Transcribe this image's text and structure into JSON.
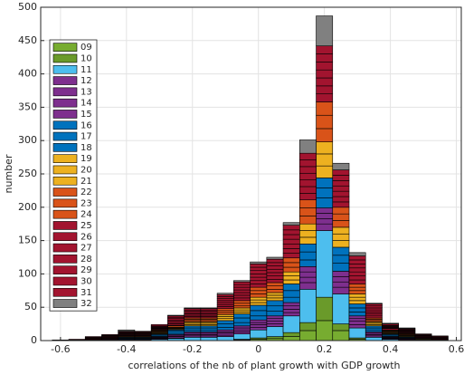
{
  "chart_data": {
    "type": "stacked-histogram",
    "xlabel": "correlations of the nb of plant growth with GDP growth",
    "ylabel": "number",
    "bins": [
      -0.625,
      -0.575,
      -0.525,
      -0.475,
      -0.425,
      -0.375,
      -0.325,
      -0.275,
      -0.225,
      -0.175,
      -0.125,
      -0.075,
      -0.025,
      0.025,
      0.075,
      0.125,
      0.175,
      0.225,
      0.275,
      0.325,
      0.375,
      0.425,
      0.475,
      0.525,
      0.575
    ],
    "xlim": [
      -0.66,
      0.615
    ],
    "ylim": [
      0,
      500
    ],
    "xticks": [
      -0.6,
      -0.4,
      -0.2,
      0,
      0.2,
      0.4,
      0.6
    ],
    "yticks": [
      0,
      50,
      100,
      150,
      200,
      250,
      300,
      350,
      400,
      450,
      500
    ],
    "grid": true,
    "legend": "upper left",
    "series": [
      {
        "name": "09",
        "color": "#77ac30",
        "values": [
          0,
          0,
          0,
          0,
          0,
          0,
          0,
          0,
          0,
          0,
          0,
          1,
          2,
          3,
          6,
          15,
          30,
          15,
          2,
          0,
          0,
          0,
          0,
          0
        ]
      },
      {
        "name": "10",
        "color": "#6a9a2a",
        "values": [
          0,
          0,
          0,
          0,
          0,
          0,
          0,
          0,
          0,
          0,
          0,
          1,
          2,
          3,
          6,
          12,
          35,
          10,
          2,
          0,
          0,
          0,
          0,
          0
        ]
      },
      {
        "name": "11",
        "color": "#4dbeee",
        "values": [
          0,
          0,
          0,
          0,
          0,
          1,
          2,
          3,
          5,
          5,
          6,
          8,
          12,
          15,
          25,
          50,
          100,
          45,
          15,
          5,
          2,
          0,
          0,
          0
        ]
      },
      {
        "name": "12",
        "color": "#7e2f8e",
        "values": [
          0,
          0,
          0,
          0,
          1,
          0,
          1,
          1,
          2,
          2,
          2,
          3,
          4,
          4,
          5,
          10,
          10,
          10,
          5,
          2,
          1,
          1,
          0,
          0
        ]
      },
      {
        "name": "13",
        "color": "#7e2f8e",
        "values": [
          0,
          0,
          0,
          0,
          0,
          1,
          1,
          2,
          2,
          2,
          3,
          3,
          4,
          4,
          5,
          8,
          8,
          8,
          5,
          2,
          1,
          1,
          0,
          0
        ]
      },
      {
        "name": "14",
        "color": "#7e2f8e",
        "values": [
          0,
          0,
          0,
          0,
          0,
          0,
          1,
          1,
          2,
          2,
          2,
          3,
          3,
          4,
          5,
          8,
          8,
          8,
          4,
          2,
          1,
          0,
          1,
          0
        ]
      },
      {
        "name": "15",
        "color": "#7e2f8e",
        "values": [
          0,
          0,
          0,
          0,
          1,
          0,
          1,
          2,
          2,
          2,
          3,
          3,
          4,
          4,
          5,
          8,
          8,
          8,
          4,
          2,
          1,
          1,
          0,
          0
        ]
      },
      {
        "name": "16",
        "color": "#0072bd",
        "values": [
          0,
          0,
          0,
          1,
          1,
          1,
          1,
          2,
          3,
          3,
          4,
          5,
          6,
          7,
          8,
          10,
          15,
          12,
          6,
          3,
          1,
          1,
          0,
          0
        ]
      },
      {
        "name": "17",
        "color": "#0072bd",
        "values": [
          0,
          0,
          0,
          0,
          1,
          1,
          2,
          3,
          3,
          3,
          5,
          7,
          8,
          8,
          10,
          12,
          15,
          12,
          6,
          3,
          2,
          1,
          1,
          0
        ]
      },
      {
        "name": "18",
        "color": "#0072bd",
        "values": [
          0,
          0,
          0,
          1,
          1,
          1,
          1,
          2,
          3,
          3,
          5,
          6,
          8,
          8,
          10,
          12,
          15,
          12,
          6,
          3,
          1,
          1,
          0,
          0
        ]
      },
      {
        "name": "19",
        "color": "#edb120",
        "values": [
          0,
          0,
          0,
          0,
          1,
          0,
          1,
          1,
          2,
          2,
          3,
          3,
          4,
          4,
          6,
          10,
          18,
          10,
          5,
          2,
          1,
          1,
          0,
          0
        ]
      },
      {
        "name": "20",
        "color": "#edb120",
        "values": [
          0,
          0,
          0,
          0,
          0,
          1,
          1,
          1,
          2,
          2,
          3,
          3,
          4,
          4,
          6,
          10,
          18,
          10,
          5,
          2,
          1,
          0,
          1,
          0
        ]
      },
      {
        "name": "21",
        "color": "#edb120",
        "values": [
          0,
          0,
          0,
          0,
          0,
          0,
          1,
          1,
          2,
          2,
          3,
          3,
          4,
          4,
          6,
          10,
          18,
          10,
          5,
          2,
          1,
          1,
          0,
          0
        ]
      },
      {
        "name": "22",
        "color": "#d95319",
        "values": [
          0,
          0,
          0,
          0,
          1,
          1,
          1,
          1,
          2,
          2,
          3,
          3,
          5,
          5,
          7,
          12,
          20,
          10,
          5,
          2,
          1,
          1,
          0,
          0
        ]
      },
      {
        "name": "23",
        "color": "#d95319",
        "values": [
          0,
          0,
          0,
          0,
          0,
          0,
          1,
          2,
          2,
          2,
          3,
          4,
          5,
          5,
          7,
          12,
          20,
          10,
          5,
          2,
          1,
          1,
          0,
          1
        ]
      },
      {
        "name": "24",
        "color": "#d95319",
        "values": [
          0,
          0,
          0,
          0,
          0,
          0,
          1,
          1,
          2,
          2,
          3,
          4,
          5,
          5,
          7,
          12,
          20,
          10,
          5,
          2,
          1,
          1,
          0,
          0
        ]
      },
      {
        "name": "25",
        "color": "#a2142f",
        "values": [
          0,
          0,
          1,
          1,
          1,
          1,
          1,
          2,
          2,
          2,
          3,
          4,
          5,
          5,
          7,
          10,
          12,
          8,
          6,
          3,
          2,
          1,
          1,
          0
        ]
      },
      {
        "name": "26",
        "color": "#a2142f",
        "values": [
          0,
          0,
          0,
          1,
          1,
          1,
          1,
          2,
          2,
          2,
          3,
          4,
          5,
          5,
          7,
          10,
          12,
          8,
          6,
          3,
          1,
          1,
          1,
          1
        ]
      },
      {
        "name": "27",
        "color": "#a2142f",
        "values": [
          0,
          1,
          1,
          1,
          1,
          1,
          1,
          2,
          2,
          2,
          3,
          4,
          5,
          5,
          7,
          10,
          12,
          8,
          6,
          3,
          1,
          1,
          1,
          1
        ]
      },
      {
        "name": "28",
        "color": "#a2142f",
        "values": [
          0,
          0,
          1,
          1,
          1,
          1,
          1,
          2,
          2,
          2,
          3,
          4,
          5,
          5,
          7,
          10,
          12,
          8,
          6,
          3,
          1,
          1,
          1,
          1
        ]
      },
      {
        "name": "29",
        "color": "#a2142f",
        "values": [
          0,
          0,
          1,
          1,
          1,
          1,
          1,
          2,
          2,
          2,
          3,
          4,
          5,
          5,
          7,
          10,
          12,
          8,
          6,
          3,
          1,
          1,
          1,
          1
        ]
      },
      {
        "name": "30",
        "color": "#a2142f",
        "values": [
          1,
          0,
          1,
          1,
          1,
          1,
          1,
          2,
          2,
          2,
          3,
          4,
          5,
          5,
          7,
          10,
          12,
          8,
          6,
          3,
          1,
          1,
          1,
          1
        ]
      },
      {
        "name": "31",
        "color": "#a2142f",
        "values": [
          0,
          1,
          1,
          1,
          1,
          1,
          2,
          2,
          2,
          2,
          3,
          4,
          5,
          5,
          7,
          10,
          12,
          8,
          6,
          3,
          2,
          1,
          1,
          1
        ]
      },
      {
        "name": "32",
        "color": "#808080",
        "values": [
          0,
          0,
          0,
          0,
          2,
          0,
          0,
          1,
          1,
          1,
          2,
          2,
          3,
          3,
          4,
          20,
          45,
          10,
          5,
          1,
          1,
          1,
          0,
          0
        ]
      }
    ]
  }
}
